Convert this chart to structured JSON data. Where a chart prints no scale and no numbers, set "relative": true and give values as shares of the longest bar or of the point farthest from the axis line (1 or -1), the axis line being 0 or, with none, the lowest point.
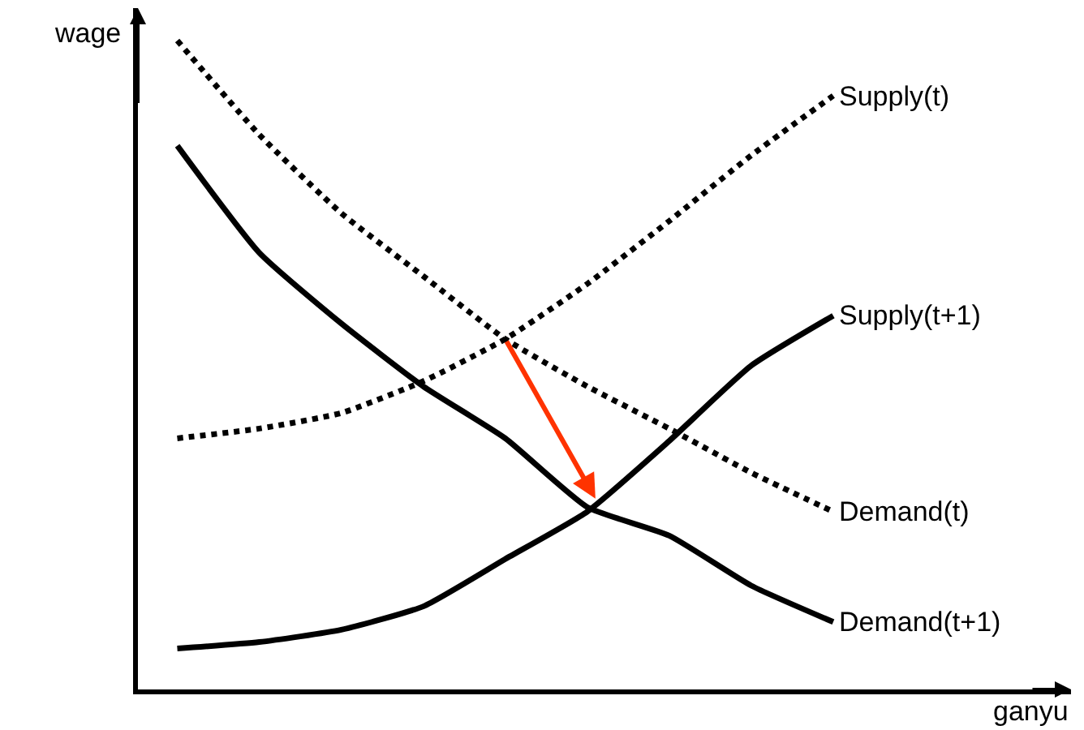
{
  "chart_data": {
    "type": "line",
    "relative": true,
    "xlabel": "ganyu",
    "ylabel": "wage",
    "categories": [
      null,
      null,
      null,
      null,
      null,
      null,
      null,
      null,
      null
    ],
    "legend": false,
    "marker": "none",
    "series": [
      {
        "name": "Supply(t)",
        "color": "#000000",
        "line_style": "dotted",
        "values": [
          0.387,
          0.402,
          0.426,
          0.475,
          0.54,
          0.625,
          0.722,
          0.823,
          0.915
        ]
      },
      {
        "name": "Demand(t)",
        "color": "#000000",
        "line_style": "dotted",
        "values": [
          1.0,
          0.855,
          0.734,
          0.637,
          0.54,
          0.467,
          0.402,
          0.334,
          0.274
        ]
      },
      {
        "name": "Supply(t+1)",
        "color": "#000000",
        "line_style": "solid",
        "values": [
          0.063,
          0.073,
          0.092,
          0.128,
          0.201,
          0.274,
          0.383,
          0.499,
          0.576
        ]
      },
      {
        "name": "Demand(t+1)",
        "color": "#000000",
        "line_style": "solid",
        "values": [
          0.838,
          0.673,
          0.564,
          0.467,
          0.387,
          0.281,
          0.237,
          0.16,
          0.104
        ]
      }
    ]
  }
}
